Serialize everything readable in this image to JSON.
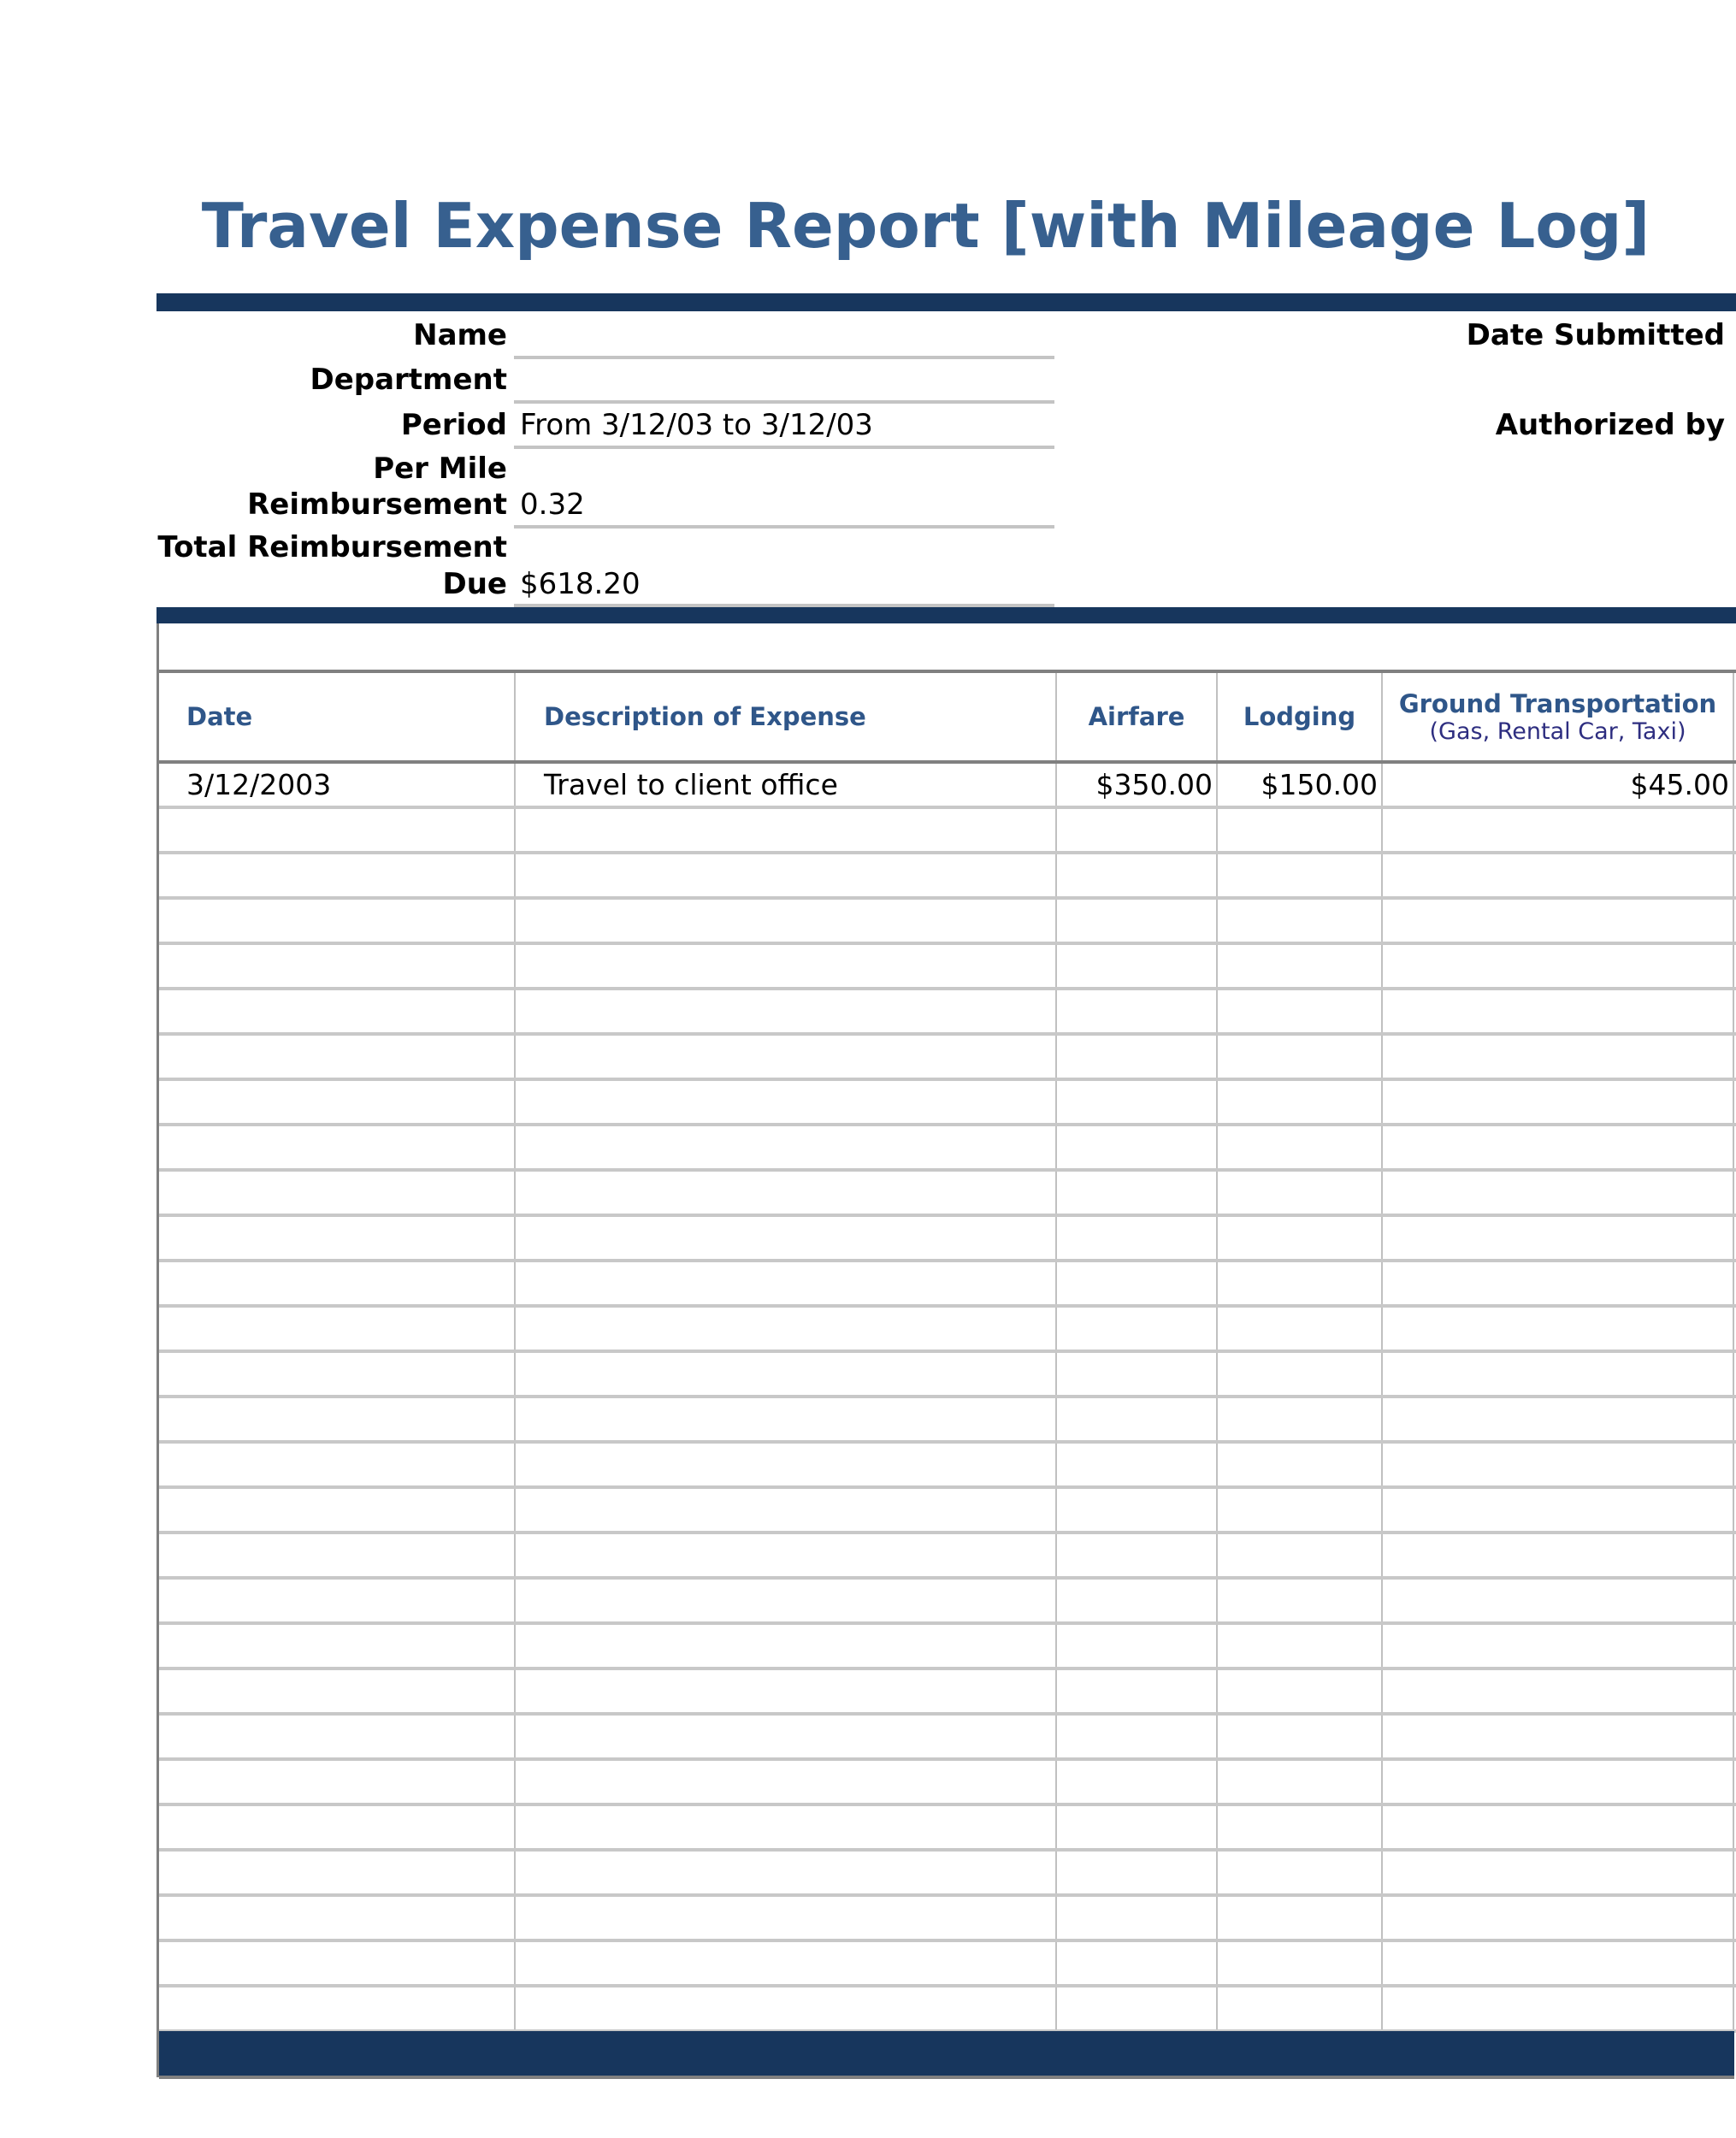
{
  "title": "Travel Expense Report [with Mileage Log]",
  "colors": {
    "bar": "#17365d",
    "title": "#37608f",
    "header": "#2f5689"
  },
  "info": {
    "name_label": "Name",
    "name_value": "",
    "department_label": "Department",
    "department_value": "",
    "period_label": "Period",
    "period_value": "From 3/12/03 to 3/12/03",
    "per_mile_label_1": "Per Mile",
    "per_mile_label_2": "Reimbursement",
    "per_mile_value": "0.32",
    "total_label_1": "Total Reimbursement",
    "total_label_2": "Due",
    "total_value": "$618.20",
    "date_submitted_label": "Date Submitted",
    "authorized_by_label": "Authorized by"
  },
  "table": {
    "headers": {
      "date": "Date",
      "description": "Description of Expense",
      "airfare": "Airfare",
      "lodging": "Lodging",
      "ground": "Ground Transportation",
      "ground_sub": "(Gas, Rental Car, Taxi)"
    },
    "rows": [
      {
        "date": "3/12/2003",
        "description": "Travel to client office",
        "airfare": "$350.00",
        "lodging": "$150.00",
        "ground": "$45.00"
      }
    ]
  }
}
